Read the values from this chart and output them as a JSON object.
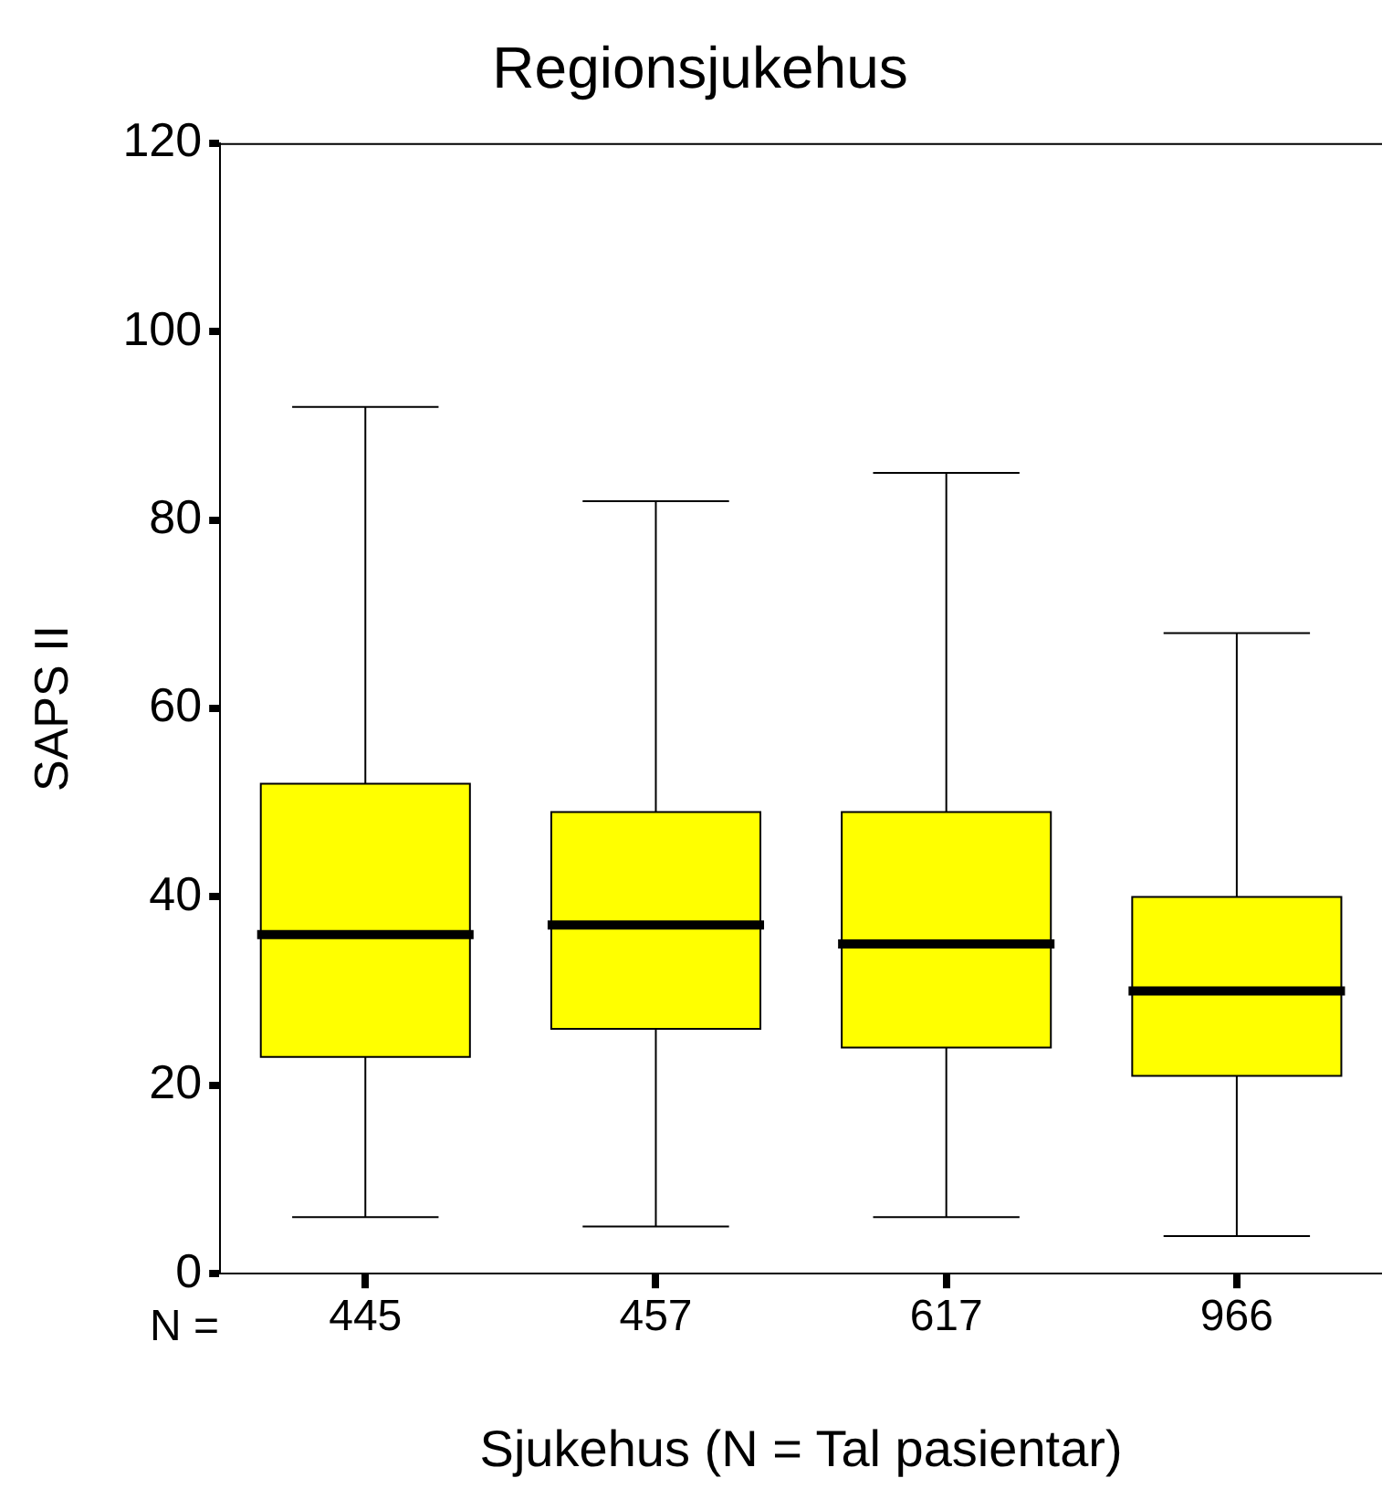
{
  "chart_data": {
    "type": "box",
    "title": "Regionsjukehus",
    "xlabel": "Sjukehus (N = Tal pasientar)",
    "ylabel": "SAPS II",
    "categories": [
      "445",
      "457",
      "617",
      "966"
    ],
    "series": [
      {
        "color": "#ffff00",
        "boxes": [
          {
            "low": 6,
            "q1": 23,
            "median": 36,
            "q3": 52,
            "high": 92
          },
          {
            "low": 5,
            "q1": 26,
            "median": 37,
            "q3": 49,
            "high": 82
          },
          {
            "low": 6,
            "q1": 24,
            "median": 35,
            "q3": 49,
            "high": 85
          },
          {
            "low": 4,
            "q1": 21,
            "median": 30,
            "q3": 40,
            "high": 68
          }
        ]
      }
    ],
    "ylim": [
      0,
      120
    ],
    "yticks": [
      0,
      20,
      40,
      60,
      80,
      100,
      120
    ],
    "grid": false,
    "legend": false,
    "annotations": [
      "N ="
    ]
  }
}
